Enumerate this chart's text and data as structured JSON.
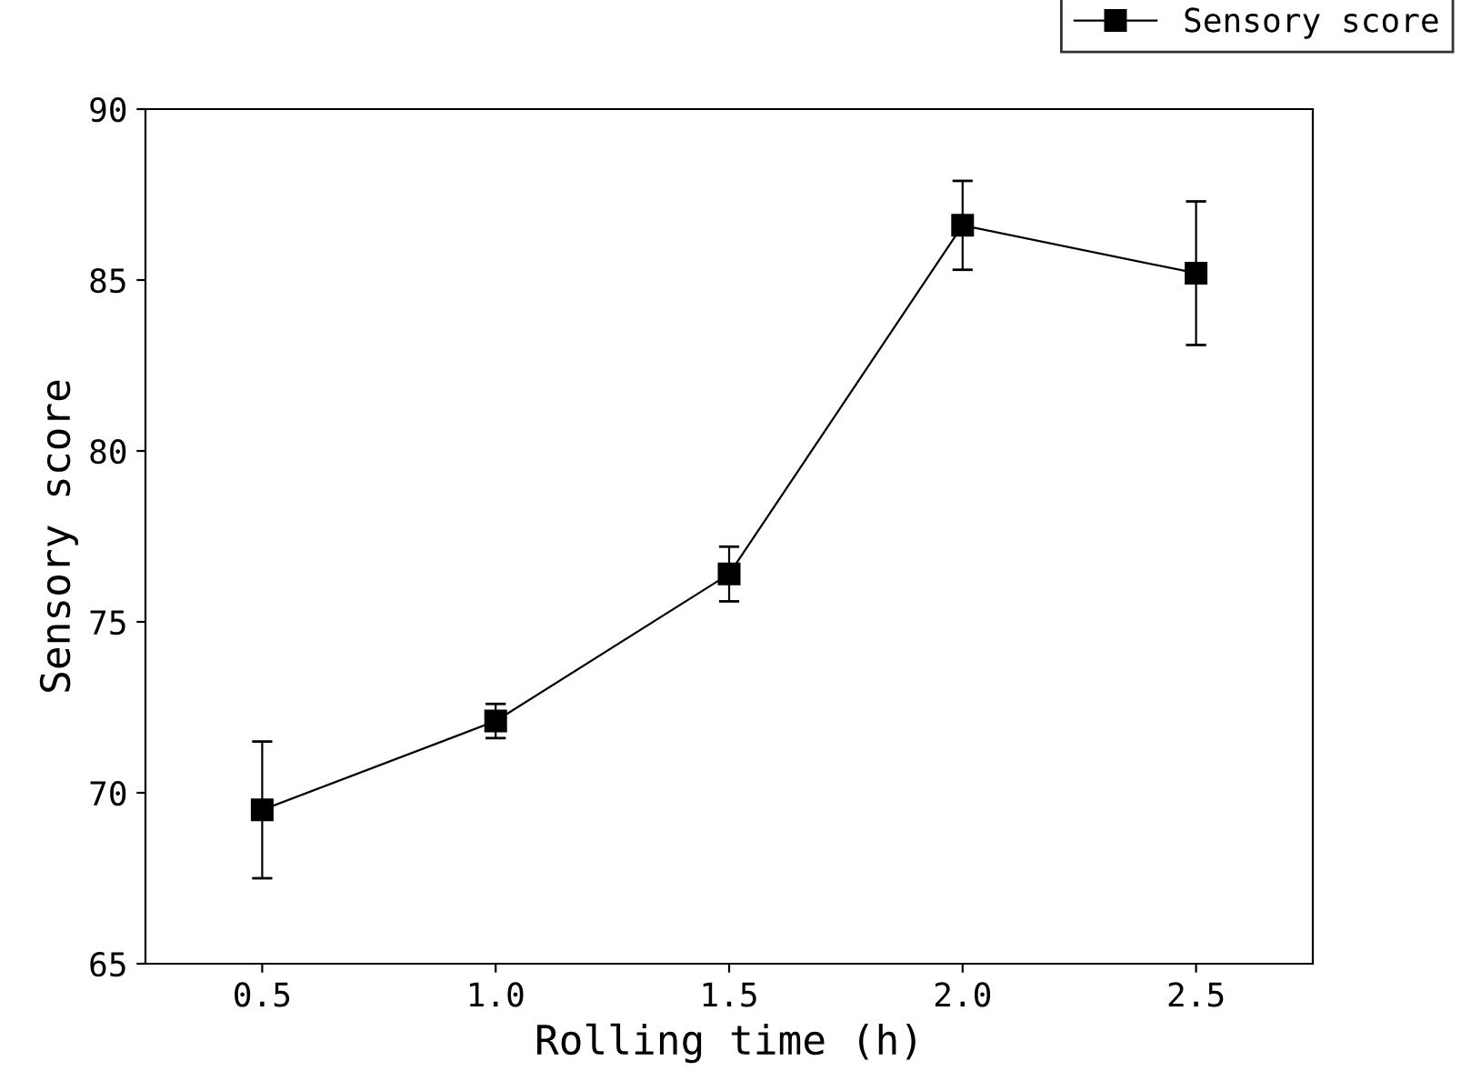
{
  "chart_data": {
    "type": "line",
    "xlabel": "Rolling time (h)",
    "ylabel": "Sensory score",
    "x": [
      0.5,
      1.0,
      1.5,
      2.0,
      2.5
    ],
    "series": [
      {
        "name": "Sensory score",
        "color": "#000000",
        "values": [
          69.5,
          72.1,
          76.4,
          86.6,
          85.2
        ],
        "errors": [
          2.0,
          0.5,
          0.8,
          1.3,
          2.1
        ]
      }
    ],
    "xlim": [
      0.25,
      2.75
    ],
    "xticks": [
      {
        "value": 0.5,
        "label": "0.5"
      },
      {
        "value": 1.0,
        "label": "1.0"
      },
      {
        "value": 1.5,
        "label": "1.5"
      },
      {
        "value": 2.0,
        "label": "2.0"
      },
      {
        "value": 2.5,
        "label": "2.5"
      }
    ],
    "ylim": [
      65,
      90
    ],
    "yticks": [
      65,
      70,
      75,
      80,
      85,
      90
    ],
    "marker": "square",
    "line_style": "solid",
    "legend": "top right",
    "grid": false
  }
}
